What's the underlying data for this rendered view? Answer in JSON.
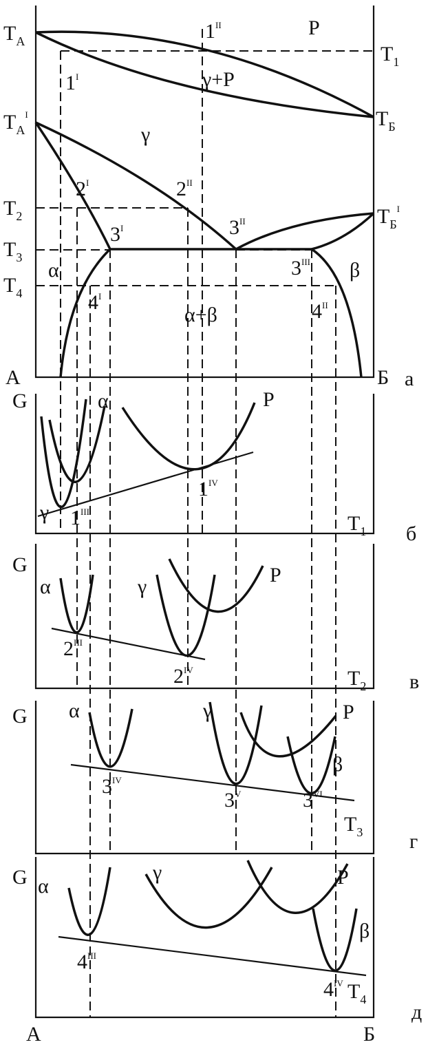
{
  "panels": [
    {
      "letter": "а",
      "labels": [
        {
          "main": "T",
          "sub": "A"
        },
        {
          "main": "1",
          "sup": "I"
        },
        {
          "main": "1",
          "sup": "II"
        },
        {
          "main": "P"
        },
        {
          "main": "T",
          "sub": "1"
        },
        {
          "main": "γ+P"
        },
        {
          "main": "T",
          "sub": "Б"
        },
        {
          "main": "T",
          "sub": "A",
          "sup": "I"
        },
        {
          "main": "γ"
        },
        {
          "main": "2",
          "sup": "I"
        },
        {
          "main": "2",
          "sup": "II"
        },
        {
          "main": "T",
          "sub": "2"
        },
        {
          "main": "T",
          "sub": "Б",
          "sup": "I"
        },
        {
          "main": "3",
          "sup": "I"
        },
        {
          "main": "3",
          "sup": "II"
        },
        {
          "main": "T",
          "sub": "3"
        },
        {
          "main": "α"
        },
        {
          "main": "3",
          "sup": "III"
        },
        {
          "main": "β"
        },
        {
          "main": "T",
          "sub": "4"
        },
        {
          "main": "4",
          "sup": "I"
        },
        {
          "main": "4",
          "sup": "II"
        },
        {
          "main": "α+β"
        },
        {
          "main": "A"
        },
        {
          "main": "Б"
        }
      ]
    },
    {
      "letter": "б",
      "labels": [
        {
          "main": "G"
        },
        {
          "main": "α"
        },
        {
          "main": "P"
        },
        {
          "main": "γ"
        },
        {
          "main": "1",
          "sup": "III"
        },
        {
          "main": "1",
          "sup": "IV"
        },
        {
          "main": "T",
          "sub": "1"
        }
      ]
    },
    {
      "letter": "в",
      "labels": [
        {
          "main": "G"
        },
        {
          "main": "α"
        },
        {
          "main": "γ"
        },
        {
          "main": "P"
        },
        {
          "main": "2",
          "sup": "III"
        },
        {
          "main": "2",
          "sup": "IV"
        },
        {
          "main": "T",
          "sub": "2"
        }
      ]
    },
    {
      "letter": "г",
      "labels": [
        {
          "main": "G"
        },
        {
          "main": "α"
        },
        {
          "main": "γ"
        },
        {
          "main": "P"
        },
        {
          "main": "β"
        },
        {
          "main": "3",
          "sup": "IV"
        },
        {
          "main": "3",
          "sup": "V"
        },
        {
          "main": "3",
          "sup": "VI"
        },
        {
          "main": "T",
          "sub": "3"
        }
      ]
    },
    {
      "letter": "д",
      "labels": [
        {
          "main": "G"
        },
        {
          "main": "α"
        },
        {
          "main": "γ"
        },
        {
          "main": "P"
        },
        {
          "main": "β"
        },
        {
          "main": "4",
          "sup": "III"
        },
        {
          "main": "4",
          "sup": "IV"
        },
        {
          "main": "T",
          "sub": "4"
        },
        {
          "main": "A"
        },
        {
          "main": "Б"
        }
      ]
    }
  ]
}
